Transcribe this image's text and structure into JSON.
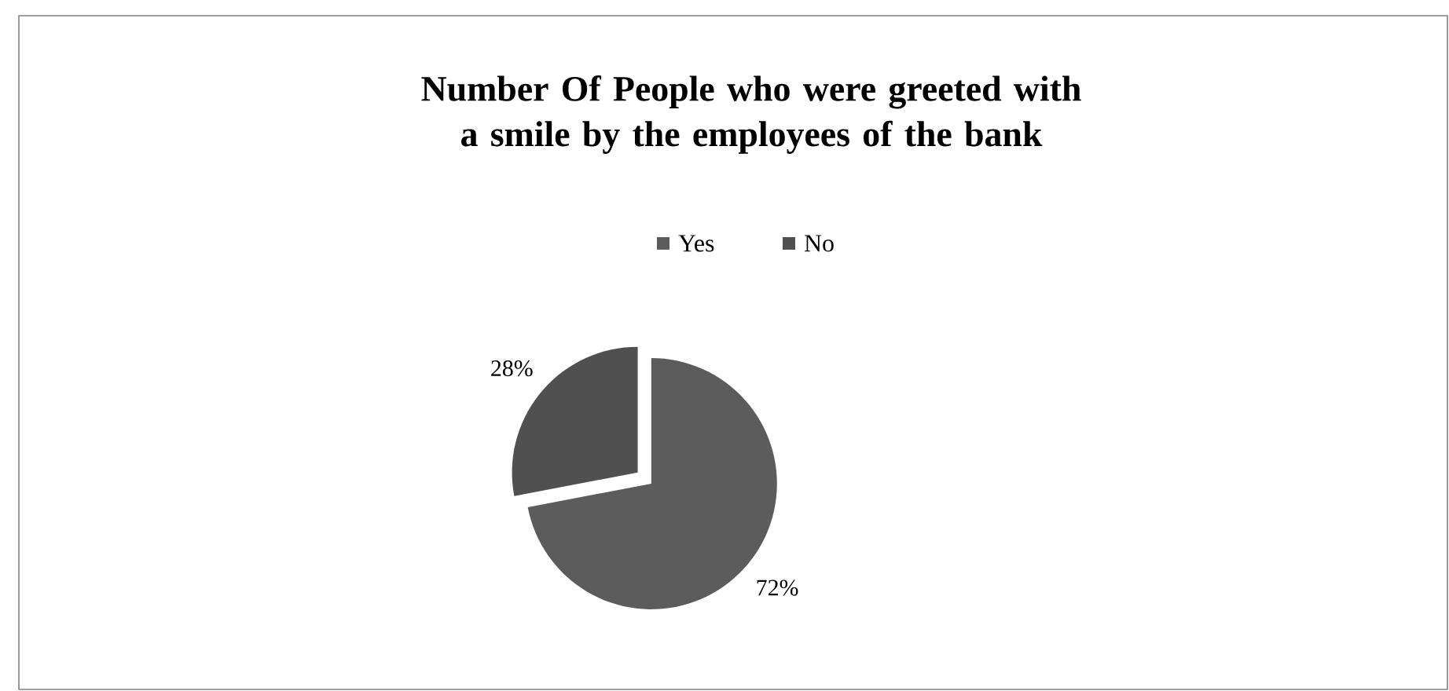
{
  "chart_data": {
    "type": "pie",
    "title": "Number Of People who were greeted with a smile by the employees of the bank",
    "categories": [
      "Yes",
      "No"
    ],
    "values": [
      72,
      28
    ],
    "value_labels": [
      "72%",
      "28%"
    ],
    "colors": [
      "#5c5c5c",
      "#505050"
    ],
    "legend": "top"
  }
}
